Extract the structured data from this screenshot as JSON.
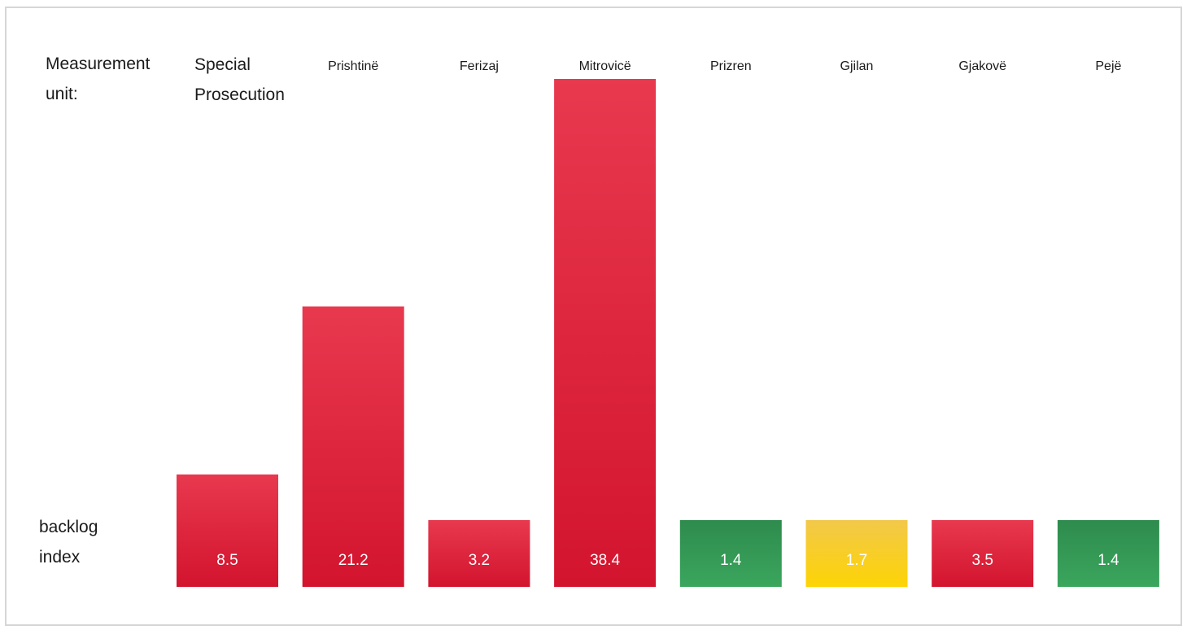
{
  "labels": {
    "unit_line1": "Measurement",
    "unit_line2": "unit:",
    "index_line1": "backlog",
    "index_line2": "index"
  },
  "colors": {
    "red_top": "#e8394f",
    "red_bottom": "#d3142e",
    "green_top": "#2e8b4d",
    "green_bottom": "#3aa65d",
    "yellow_top": "#f2c84b",
    "yellow_bottom": "#fdd404"
  },
  "chart_data": {
    "type": "bar",
    "title": "",
    "xlabel": "",
    "ylabel": "backlog index",
    "categories": [
      [
        "Special",
        "Prosecution"
      ],
      [
        "Prishtinë"
      ],
      [
        "Ferizaj"
      ],
      [
        "Mitrovicë"
      ],
      [
        "Prizren"
      ],
      [
        "Gjilan"
      ],
      [
        "Gjakovë"
      ],
      [
        "Pejë"
      ]
    ],
    "values": [
      8.5,
      21.2,
      3.2,
      38.4,
      1.4,
      1.7,
      3.5,
      1.4
    ],
    "value_labels": [
      "8.5",
      "21.2",
      "3.2",
      "38.4",
      "1.4",
      "1.7",
      "3.5",
      "1.4"
    ],
    "bar_colors": [
      "red",
      "red",
      "red",
      "red",
      "green",
      "yellow",
      "red",
      "green"
    ],
    "ylim": [
      0,
      38.4
    ],
    "grid": false,
    "legend": "none"
  }
}
